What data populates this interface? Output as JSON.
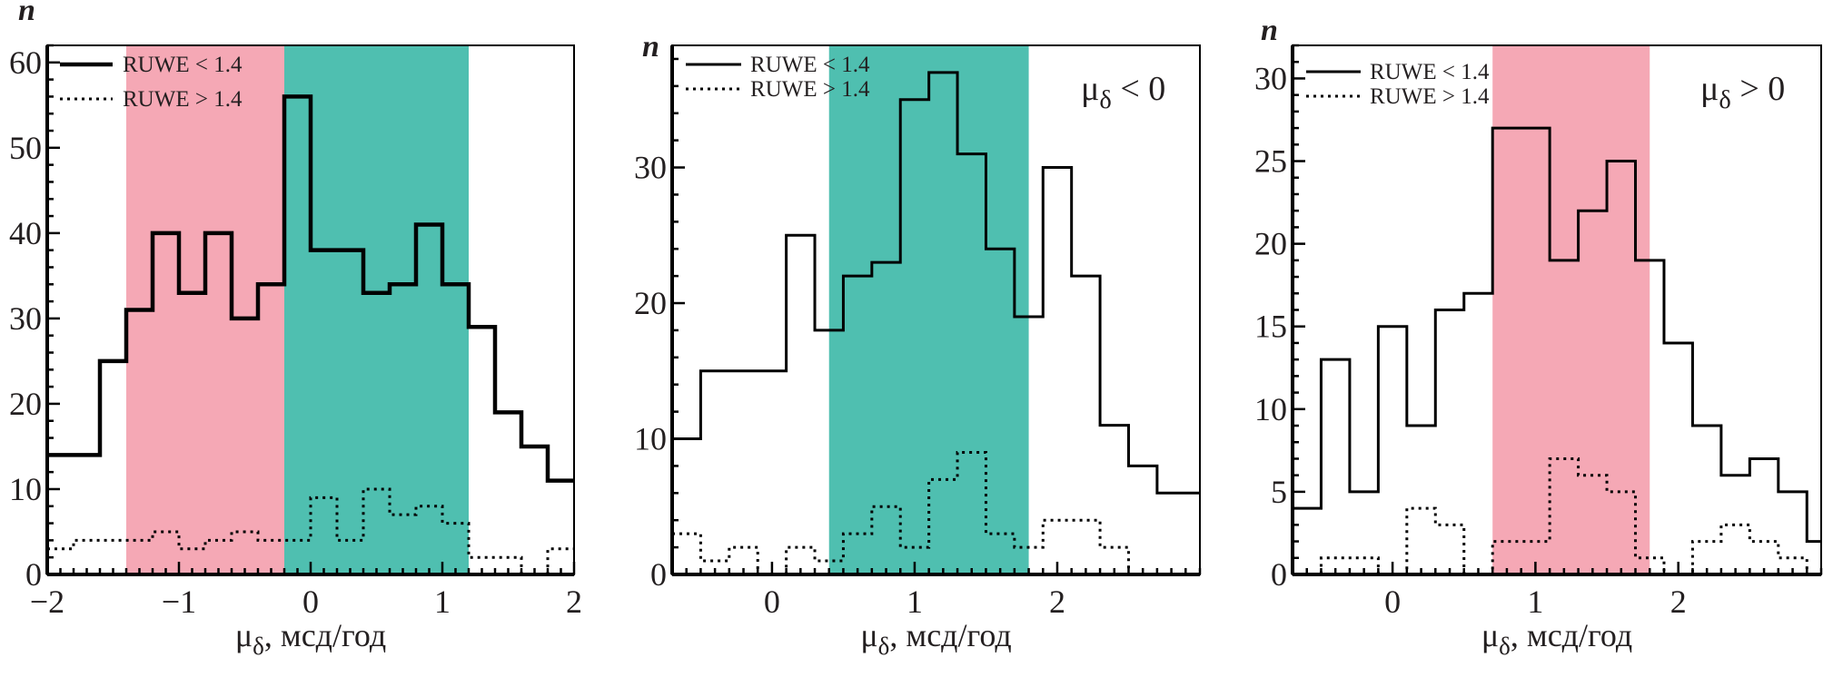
{
  "colors": {
    "pink": "#f5a8b5",
    "teal": "#4fbfb0",
    "line": "#000000"
  },
  "legend": {
    "solid": "RUWE < 1.4",
    "dotted": "RUWE > 1.4"
  },
  "chart_data": [
    {
      "type": "bar",
      "subtype": "step-histogram",
      "title": "",
      "xlabel": "μδ, мсд/год",
      "ylabel": "n",
      "annotation": "",
      "xlim": [
        -2,
        2
      ],
      "ylim": [
        0,
        62
      ],
      "xticks": [
        -2,
        -1,
        0,
        1,
        2
      ],
      "xtick_labels": [
        "−2",
        "−1",
        "0",
        "1",
        "2"
      ],
      "yticks": [
        0,
        10,
        20,
        30,
        40,
        50,
        60
      ],
      "ytick_labels": [
        "0",
        "10",
        "20",
        "30",
        "40",
        "50",
        "60"
      ],
      "shaded_regions": [
        {
          "from": -1.4,
          "to": -0.2,
          "color": "pink"
        },
        {
          "from": -0.2,
          "to": 1.2,
          "color": "teal"
        }
      ],
      "bin_edges": [
        -2,
        -1.8,
        -1.6,
        -1.4,
        -1.2,
        -1.0,
        -0.8,
        -0.6,
        -0.4,
        -0.2,
        0,
        0.2,
        0.4,
        0.6,
        0.8,
        1.0,
        1.2,
        1.4,
        1.6,
        1.8,
        2.0
      ],
      "series": [
        {
          "name": "RUWE < 1.4",
          "style": "solid-thick",
          "values": [
            14,
            14,
            25,
            31,
            40,
            33,
            40,
            30,
            34,
            56,
            38,
            38,
            33,
            34,
            41,
            34,
            29,
            19,
            15,
            11
          ]
        },
        {
          "name": "RUWE > 1.4",
          "style": "dotted",
          "values": [
            3,
            4,
            4,
            4,
            5,
            3,
            4,
            5,
            4,
            4,
            9,
            4,
            10,
            7,
            8,
            6,
            2,
            2,
            0,
            3
          ]
        }
      ]
    },
    {
      "type": "bar",
      "subtype": "step-histogram",
      "title": "",
      "xlabel": "μδ, мсд/год",
      "ylabel": "n",
      "annotation": "μδ < 0",
      "xlim": [
        -0.7,
        3.0
      ],
      "ylim": [
        0,
        39
      ],
      "xticks": [
        0,
        1,
        2
      ],
      "xtick_labels": [
        "0",
        "1",
        "2"
      ],
      "yticks": [
        0,
        10,
        20,
        30
      ],
      "ytick_labels": [
        "0",
        "10",
        "20",
        "30"
      ],
      "shaded_regions": [
        {
          "from": 0.4,
          "to": 1.8,
          "color": "teal"
        }
      ],
      "bin_edges": [
        -0.7,
        -0.5,
        -0.3,
        -0.1,
        0.1,
        0.3,
        0.5,
        0.7,
        0.9,
        1.1,
        1.3,
        1.5,
        1.7,
        1.9,
        2.1,
        2.3,
        2.5,
        2.7,
        3.0
      ],
      "series": [
        {
          "name": "RUWE < 1.4",
          "style": "solid",
          "values": [
            10,
            15,
            15,
            15,
            25,
            18,
            22,
            23,
            35,
            37,
            31,
            24,
            19,
            30,
            22,
            11,
            8,
            6
          ]
        },
        {
          "name": "RUWE > 1.4",
          "style": "dotted",
          "values": [
            3,
            1,
            2,
            0,
            2,
            1,
            3,
            5,
            2,
            7,
            9,
            3,
            2,
            4,
            4,
            2,
            0,
            0
          ]
        }
      ]
    },
    {
      "type": "bar",
      "subtype": "step-histogram",
      "title": "",
      "xlabel": "μδ, мсд/год",
      "ylabel": "n",
      "annotation": "μδ > 0",
      "xlim": [
        -0.7,
        3.0
      ],
      "ylim": [
        0,
        32
      ],
      "xticks": [
        0,
        1,
        2
      ],
      "xtick_labels": [
        "0",
        "1",
        "2"
      ],
      "yticks": [
        0,
        5,
        10,
        15,
        20,
        25,
        30
      ],
      "ytick_labels": [
        "0",
        "5",
        "10",
        "15",
        "20",
        "25",
        "30"
      ],
      "shaded_regions": [
        {
          "from": 0.7,
          "to": 1.8,
          "color": "pink"
        }
      ],
      "bin_edges": [
        -0.7,
        -0.5,
        -0.3,
        -0.1,
        0.1,
        0.3,
        0.5,
        0.7,
        0.9,
        1.1,
        1.3,
        1.5,
        1.7,
        1.9,
        2.1,
        2.3,
        2.5,
        2.7,
        2.9,
        3.0
      ],
      "series": [
        {
          "name": "RUWE < 1.4",
          "style": "solid",
          "values": [
            4,
            13,
            5,
            15,
            9,
            16,
            17,
            27,
            27,
            19,
            22,
            25,
            19,
            14,
            9,
            6,
            7,
            5,
            2
          ]
        },
        {
          "name": "RUWE > 1.4",
          "style": "dotted",
          "values": [
            0,
            1,
            1,
            0,
            4,
            3,
            0,
            2,
            2,
            7,
            6,
            5,
            1,
            0,
            2,
            3,
            2,
            1,
            0
          ]
        }
      ]
    }
  ]
}
